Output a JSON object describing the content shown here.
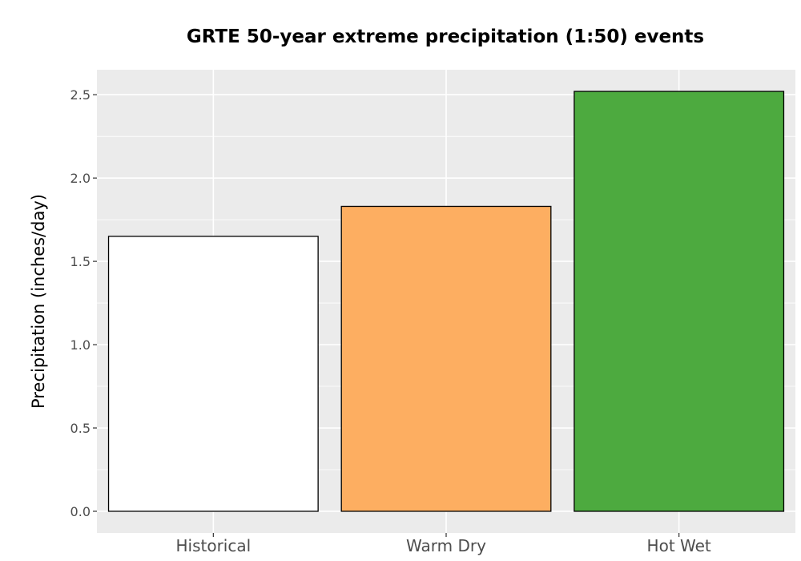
{
  "chart_data": {
    "type": "bar",
    "title": "GRTE 50-year extreme precipitation (1:50) events",
    "xlabel": "",
    "ylabel": "Precipitation (inches/day)",
    "categories": [
      "Historical",
      "Warm Dry",
      "Hot Wet"
    ],
    "values": [
      1.65,
      1.83,
      2.52
    ],
    "bar_colors": [
      "#ffffff",
      "#fdae61",
      "#4daa3f"
    ],
    "ylim": [
      -0.13,
      2.65
    ],
    "yticks": [
      0.0,
      0.5,
      1.0,
      1.5,
      2.0,
      2.5
    ],
    "ytick_labels": [
      "0.0",
      "0.5",
      "1.0",
      "1.5",
      "2.0",
      "2.5"
    ],
    "grid": true,
    "panel_background": "#ebebeb",
    "grid_color": "#ffffff",
    "bar_edge_color": "#000000"
  }
}
